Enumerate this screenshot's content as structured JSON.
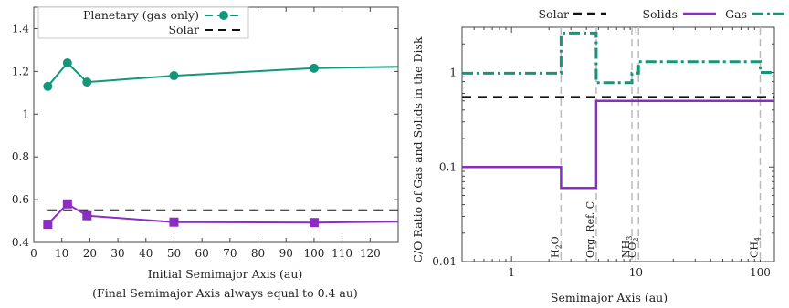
{
  "colors": {
    "green": "#13977a",
    "purple": "#8b2cc2",
    "black": "#111111",
    "grid": "#bbbbbb"
  },
  "chart_data": [
    {
      "type": "line",
      "xlabel": "Initial Semimajor Axis (au)",
      "xlabel2": "(Final Semimajor Axis always equal to 0.4 au)",
      "xlim": [
        0,
        130
      ],
      "ylim": [
        0.4,
        1.5
      ],
      "xticks": [
        0,
        10,
        20,
        30,
        40,
        50,
        60,
        70,
        80,
        90,
        100,
        110,
        120
      ],
      "yticks": [
        0.4,
        0.6,
        0.8,
        1,
        1.2,
        1.4
      ],
      "legend": [
        "Planetary (gas only)",
        "Solar"
      ],
      "legend_position": "top-right",
      "series": [
        {
          "name": "Planetary (gas only)",
          "marker": "circle",
          "x": [
            5,
            12,
            19,
            50,
            100,
            130
          ],
          "y": [
            1.13,
            1.24,
            1.15,
            1.18,
            1.215,
            1.222
          ],
          "markers": [
            true,
            true,
            true,
            true,
            true,
            false
          ]
        },
        {
          "name": "Solar",
          "style": "dashed",
          "x": [
            5,
            130
          ],
          "y": [
            0.55,
            0.55
          ]
        },
        {
          "name": "",
          "marker": "square",
          "x": [
            5,
            12,
            19,
            50,
            100,
            130
          ],
          "y": [
            0.485,
            0.58,
            0.525,
            0.495,
            0.493,
            0.497
          ],
          "markers": [
            true,
            true,
            true,
            true,
            true,
            false
          ]
        }
      ]
    },
    {
      "type": "line",
      "xlabel": "Semimajor Axis (au)",
      "ylabel": "C/O Ratio of Gas and Solids in the Disk",
      "xscale": "log",
      "yscale": "log",
      "xlim": [
        0.4,
        130
      ],
      "ylim": [
        0.01,
        3
      ],
      "xticks": [
        1,
        10,
        100
      ],
      "yticks": [
        0.01,
        0.1,
        1
      ],
      "legend": [
        "Solar",
        "Solids",
        "Gas"
      ],
      "legend_position": "top",
      "snowlines": [
        {
          "x": 2.5,
          "label": "H2O"
        },
        {
          "x": 4.8,
          "label": "Org. Ref. C"
        },
        {
          "x": 9.3,
          "label": "NH3"
        },
        {
          "x": 10.5,
          "label": "CO2"
        },
        {
          "x": 100,
          "label": "CH4"
        }
      ],
      "series": [
        {
          "name": "Solar",
          "style": "dashed",
          "x": [
            0.4,
            130
          ],
          "y": [
            0.55,
            0.55
          ]
        },
        {
          "name": "Solids",
          "style": "step",
          "x": [
            0.4,
            2.5,
            2.5,
            4.8,
            4.8,
            130
          ],
          "y": [
            0.1,
            0.1,
            0.06,
            0.06,
            0.5,
            0.5
          ]
        },
        {
          "name": "Gas",
          "style": "dash-dot-step",
          "x": [
            0.4,
            2.5,
            2.5,
            4.8,
            4.8,
            9.3,
            9.3,
            10.5,
            10.5,
            100,
            100,
            130
          ],
          "y": [
            0.98,
            0.98,
            2.6,
            2.6,
            0.78,
            0.78,
            0.98,
            0.98,
            1.3,
            1.3,
            1.0,
            1.0
          ]
        }
      ]
    }
  ]
}
